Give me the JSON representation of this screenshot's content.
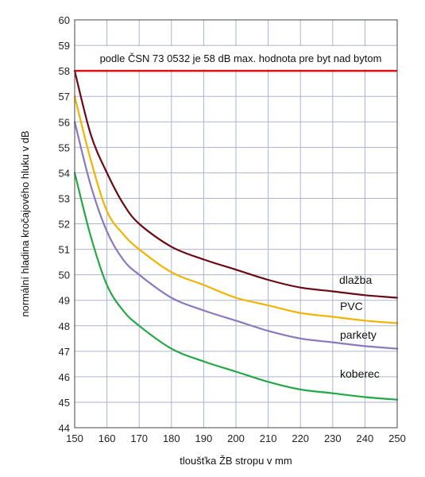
{
  "chart_data": {
    "type": "line",
    "title": "",
    "xlabel": "tloušťka ŽB stropu v mm",
    "ylabel": "normální hladina kročajového hluku v dB",
    "xlim": [
      150,
      250
    ],
    "ylim": [
      44,
      60
    ],
    "x_ticks": [
      "150",
      "160",
      "170",
      "180",
      "190",
      "200",
      "210",
      "220",
      "230",
      "240",
      "250"
    ],
    "y_ticks": [
      "44",
      "45",
      "46",
      "47",
      "48",
      "49",
      "50",
      "51",
      "52",
      "53",
      "54",
      "55",
      "56",
      "57",
      "58",
      "59",
      "60"
    ],
    "grid": true,
    "annotation": "podle ČSN 73 0532 je 58 dB max. hodnota pre byt nad bytom",
    "threshold": {
      "value": 58,
      "color": "#e01010"
    },
    "x": [
      150,
      155,
      160,
      165,
      170,
      180,
      190,
      200,
      210,
      220,
      230,
      240,
      250
    ],
    "series": [
      {
        "name": "dlažba",
        "color": "#6b0a14",
        "values": [
          58.0,
          55.5,
          54.0,
          52.8,
          52.0,
          51.1,
          50.6,
          50.2,
          49.8,
          49.5,
          49.35,
          49.2,
          49.1
        ]
      },
      {
        "name": "PVC",
        "color": "#f2b400",
        "values": [
          57.0,
          54.5,
          52.5,
          51.6,
          51.0,
          50.1,
          49.6,
          49.1,
          48.8,
          48.5,
          48.35,
          48.2,
          48.1
        ]
      },
      {
        "name": "parkety",
        "color": "#8a78c0",
        "values": [
          56.0,
          53.5,
          51.7,
          50.6,
          50.0,
          49.1,
          48.6,
          48.2,
          47.8,
          47.5,
          47.35,
          47.2,
          47.1
        ]
      },
      {
        "name": "koberec",
        "color": "#22a844",
        "values": [
          54.0,
          51.5,
          49.6,
          48.6,
          48.0,
          47.1,
          46.6,
          46.2,
          45.8,
          45.5,
          45.35,
          45.2,
          45.1
        ]
      }
    ]
  }
}
